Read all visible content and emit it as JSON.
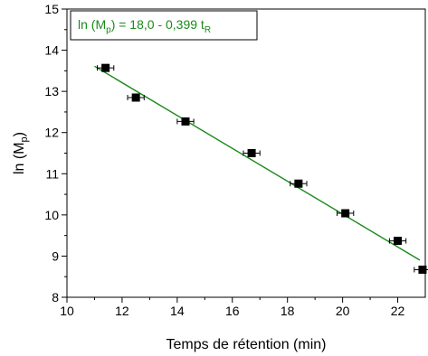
{
  "chart_data": {
    "type": "scatter",
    "title": "",
    "xlabel": "Temps de rétention (min)",
    "ylabel_main": "ln (M",
    "ylabel_sub": "p",
    "ylabel_close": ")",
    "xlim": [
      10,
      23
    ],
    "ylim": [
      8,
      15
    ],
    "x_ticks": [
      10,
      12,
      14,
      16,
      18,
      20,
      22
    ],
    "y_ticks": [
      8,
      9,
      10,
      11,
      12,
      13,
      14,
      15
    ],
    "grid": false,
    "series": [
      {
        "x": [
          11.4,
          12.5,
          14.3,
          16.7,
          18.4,
          20.1,
          22.0,
          22.9
        ],
        "y": [
          13.57,
          12.85,
          12.27,
          11.5,
          10.76,
          10.04,
          9.37,
          8.67
        ],
        "x_error": [
          0.3,
          0.3,
          0.3,
          0.3,
          0.3,
          0.3,
          0.3,
          0.3
        ]
      }
    ],
    "fit": {
      "intercept": 18.0,
      "slope": -0.399,
      "x_range": [
        11.0,
        22.8
      ],
      "color": "#1a8a1a",
      "label_parts": {
        "a": "ln (M",
        "b": "p",
        "c": ") = 18,0 - 0,399 t",
        "d": "R"
      },
      "label_placement": "top-left"
    },
    "marker_color": "#000000"
  }
}
